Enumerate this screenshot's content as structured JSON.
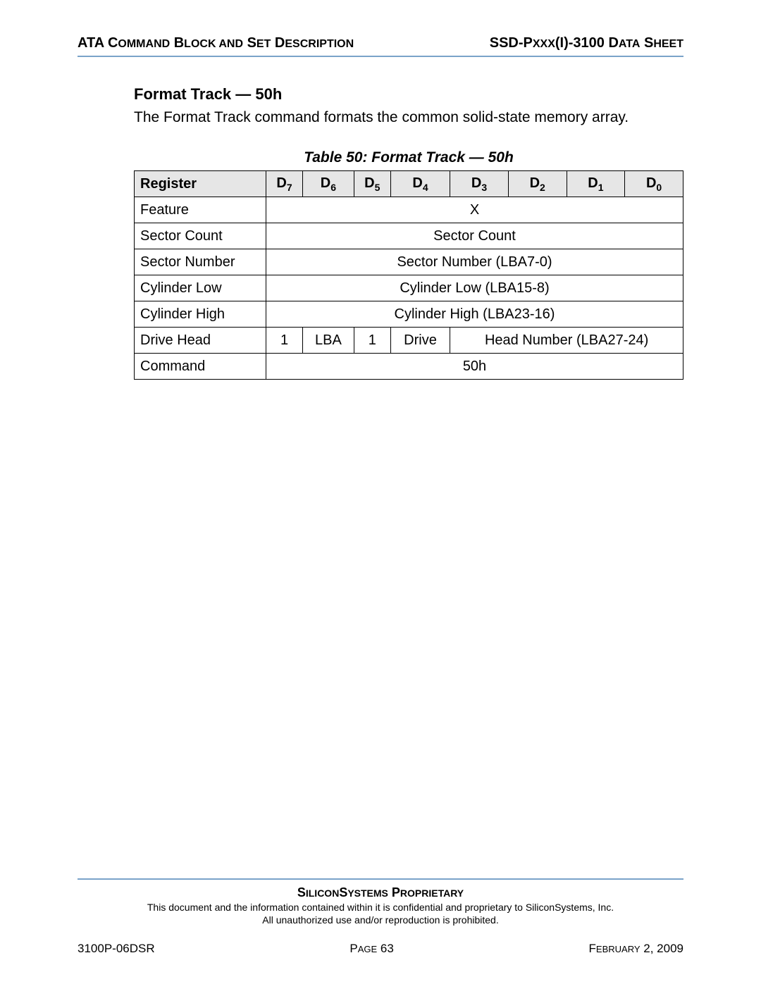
{
  "header": {
    "left_pre": "ATA C",
    "left_sc1": "OMMAND",
    "left_mid1": " B",
    "left_sc2": "LOCK AND",
    "left_mid2": " S",
    "left_sc3": "ET",
    "left_mid3": " D",
    "left_sc4": "ESCRIPTION",
    "right_pre": "SSD-P",
    "right_sc1": "XXX",
    "right_mid": "(I)-3100 D",
    "right_sc2": "ATA",
    "right_mid2": " S",
    "right_sc3": "HEET"
  },
  "section": {
    "title": "Format Track — 50h",
    "desc": "The Format Track command formats the common solid-state memory array."
  },
  "table": {
    "caption": "Table 50:  Format Track — 50h",
    "header": {
      "register": "Register",
      "d7": "D",
      "d7s": "7",
      "d6": "D",
      "d6s": "6",
      "d5": "D",
      "d5s": "5",
      "d4": "D",
      "d4s": "4",
      "d3": "D",
      "d3s": "3",
      "d2": "D",
      "d2s": "2",
      "d1": "D",
      "d1s": "1",
      "d0": "D",
      "d0s": "0"
    },
    "rows": {
      "feature": {
        "label": "Feature",
        "val": "X"
      },
      "sector_count": {
        "label": "Sector Count",
        "val": "Sector Count"
      },
      "sector_number": {
        "label": "Sector Number",
        "val": "Sector Number (LBA7-0)"
      },
      "cyl_low": {
        "label": "Cylinder Low",
        "val": "Cylinder Low (LBA15-8)"
      },
      "cyl_high": {
        "label": "Cylinder High",
        "val": "Cylinder High (LBA23-16)"
      },
      "drive_head": {
        "label": "Drive Head",
        "c7": "1",
        "c6": "LBA",
        "c5": "1",
        "c4": "Drive",
        "c3_0": "Head Number (LBA27-24)"
      },
      "command": {
        "label": "Command",
        "val": "50h"
      }
    }
  },
  "footer": {
    "proprietary_pre": "S",
    "proprietary_sc1": "ILICON",
    "proprietary_mid": "S",
    "proprietary_sc2": "YSTEMS",
    "proprietary_mid2": " P",
    "proprietary_sc3": "ROPRIETARY",
    "line1": "This document and the information contained within it is confidential and proprietary to SiliconSystems, Inc.",
    "line2": "All unauthorized use and/or reproduction is prohibited.",
    "doc_id": "3100P-06DSR",
    "page_pre": "P",
    "page_sc": "AGE",
    "page_num": " 63",
    "date_pre": "F",
    "date_sc": "EBRUARY",
    "date_rest": " 2, 2009"
  }
}
